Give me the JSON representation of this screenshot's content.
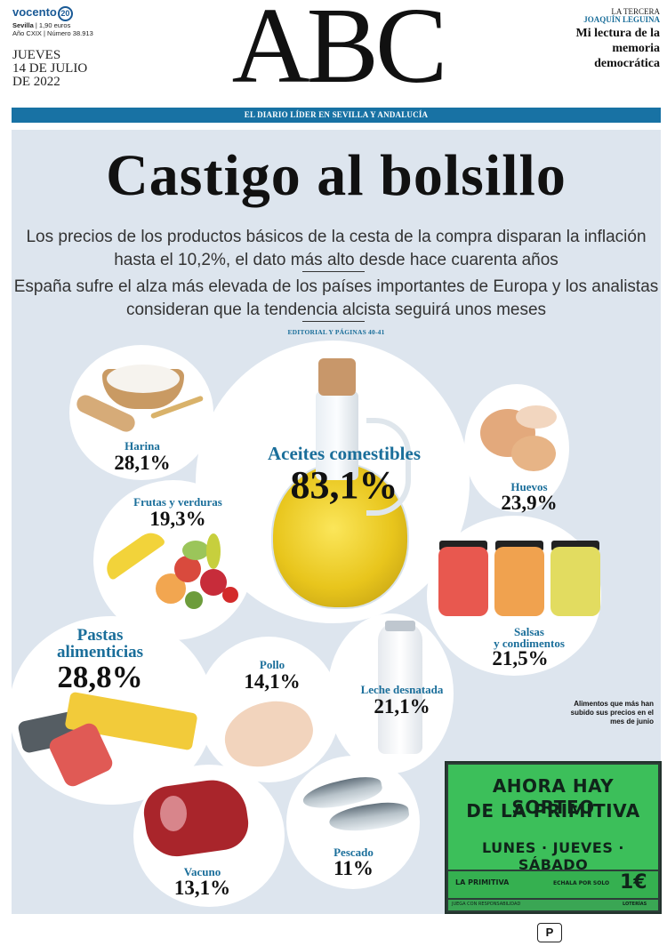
{
  "masthead": {
    "publisher": "vocento",
    "publisher_badge": "20",
    "city": "Sevilla",
    "price": "1,90 euros",
    "year_issue": "Año CXIX | Número 38.913",
    "weekday": "JUEVES",
    "date_line1": "14 DE JULIO",
    "date_line2": "DE 2022",
    "logo": "ABC",
    "tercera_kicker": "LA TERCERA",
    "tercera_author": "JOAQUÍN LEGUINA",
    "tercera_title": "Mi lectura de la memoria democrática",
    "tagline": "EL DIARIO LÍDER EN SEVILLA Y ANDALUCÍA"
  },
  "headline": "Castigo al bolsillo",
  "subheads": [
    "Los precios de los productos básicos de la cesta de la compra disparan la inflación hasta el 10,2%, el dato más alto desde hace cuarenta años",
    "España sufre el alza más elevada de los países importantes de Europa y los analistas consideran que la tendencia alcista seguirá unos meses"
  ],
  "editorial_ref": "EDITORIAL Y PÁGINAS 40-41",
  "products": [
    {
      "name": "Harina",
      "value": "28,1%"
    },
    {
      "name": "Aceites comestibles",
      "value": "83,1%"
    },
    {
      "name": "Huevos",
      "value": "23,9%"
    },
    {
      "name": "Frutas y verduras",
      "value": "19,3%"
    },
    {
      "name_line1": "Salsas",
      "name_line2": "y condimentos",
      "value": "21,5%"
    },
    {
      "name_line1": "Pastas",
      "name_line2": "alimenticias",
      "value": "28,8%"
    },
    {
      "name": "Pollo",
      "value": "14,1%"
    },
    {
      "name": "Leche desnatada",
      "value": "21,1%"
    },
    {
      "name": "Pescado",
      "value": "11%"
    },
    {
      "name": "Vacuno",
      "value": "13,1%"
    }
  ],
  "side_note": "Alimentos que más han subido sus precios en el mes de junio",
  "ad": {
    "line1": "AHORA HAY SORTEO",
    "line2": "DE LA PRIMITIVA",
    "days": "LUNES · JUEVES · SÁBADO",
    "brand": "LA PRIMITIVA",
    "price_text": "ECHALA POR SOLO",
    "price": "1€",
    "footer_left": "JUEGA CON RESPONSABILIDAD",
    "footer_right": "LOTERÍAS"
  },
  "footer_badge": "P",
  "colors": {
    "accent_blue": "#1872a4",
    "panel_bg": "#dde5ee",
    "ad_green": "#3cbf5a"
  }
}
